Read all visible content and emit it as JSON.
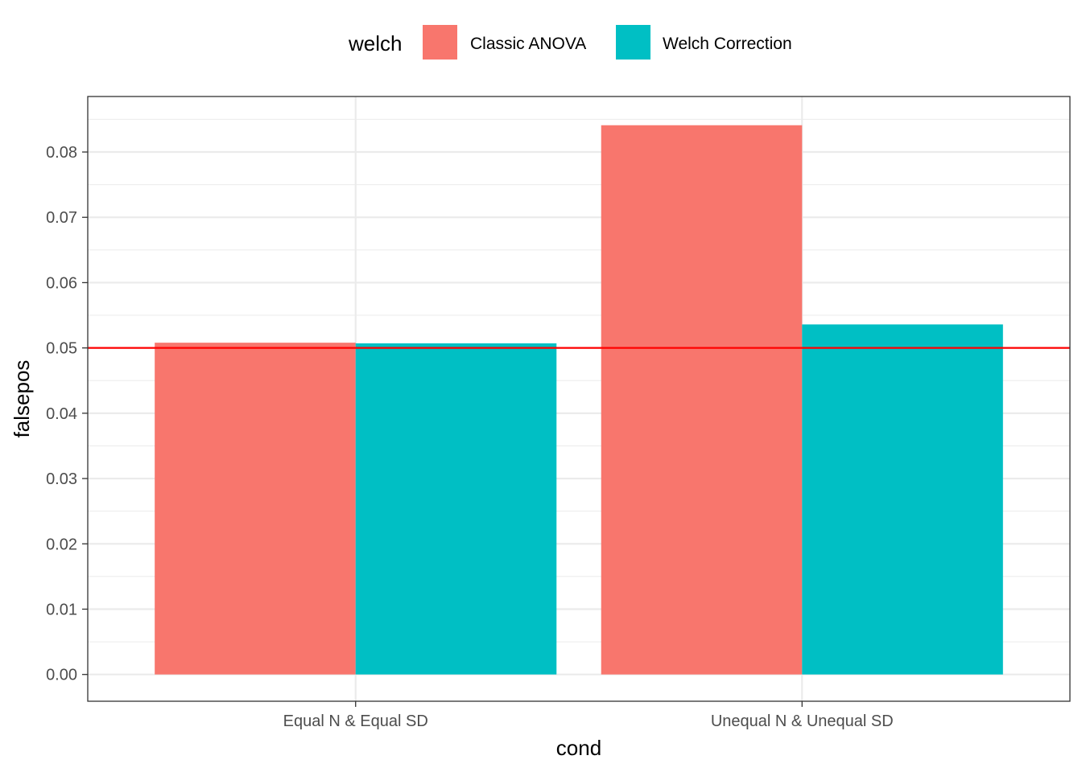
{
  "chart_data": {
    "type": "bar",
    "xlabel": "cond",
    "ylabel": "falsepos",
    "categories": [
      "Equal N & Equal SD",
      "Unequal N & Unequal SD"
    ],
    "series": [
      {
        "name": "Classic ANOVA",
        "values": [
          0.0508,
          0.0841
        ],
        "color": "#F8766D"
      },
      {
        "name": "Welch Correction",
        "values": [
          0.0507,
          0.0536
        ],
        "color": "#00BFC4"
      }
    ],
    "ylim": [
      -0.0041,
      0.0885
    ],
    "yticks": [
      0.0,
      0.01,
      0.02,
      0.03,
      0.04,
      0.05,
      0.06,
      0.07,
      0.08
    ],
    "ytick_labels": [
      "0.00",
      "0.01",
      "0.02",
      "0.03",
      "0.04",
      "0.05",
      "0.06",
      "0.07",
      "0.08"
    ],
    "reference_line": {
      "y": 0.05,
      "color": "#FF0000"
    },
    "legend": {
      "title": "welch",
      "position": "top"
    },
    "grid": true
  }
}
